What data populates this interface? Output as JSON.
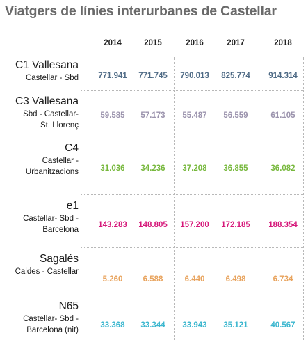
{
  "chart_data": {
    "type": "table",
    "title": "Viatgers de línies interurbanes de Castellar",
    "years": [
      "2014",
      "2015",
      "2016",
      "2017",
      "2018"
    ],
    "rows": [
      {
        "name": "C1 Vallesana",
        "route": "Castellar - Sbd",
        "color": "#4e6a85",
        "values": [
          "771.941",
          "771.745",
          "790.013",
          "825.774",
          "914.314"
        ]
      },
      {
        "name": "C3 Vallesana",
        "route": "Sbd - Castellar-\nSt. Llorenç",
        "color": "#9b93ad",
        "values": [
          "59.585",
          "57.173",
          "55.487",
          "56.559",
          "61.105"
        ]
      },
      {
        "name": "C4",
        "route": "Castellar -\nUrbanitzacions",
        "color": "#77b83d",
        "values": [
          "31.036",
          "34.236",
          "37.208",
          "36.855",
          "36.082"
        ]
      },
      {
        "name": "e1",
        "route": "Castellar- Sbd -\nBarcelona",
        "color": "#d6187a",
        "values": [
          "143.283",
          "148.805",
          "157.200",
          "172.185",
          "188.354"
        ]
      },
      {
        "name": "Sagalés",
        "route": "Caldes - Castellar",
        "color": "#e8a35d",
        "values": [
          "5.260",
          "6.588",
          "6.440",
          "6.498",
          "6.734"
        ]
      },
      {
        "name": "N65",
        "route": "Castellar- Sbd -\nBarcelona (nit)",
        "color": "#3cb7cf",
        "values": [
          "33.368",
          "33.344",
          "33.943",
          "35.121",
          "40.567"
        ]
      }
    ]
  }
}
